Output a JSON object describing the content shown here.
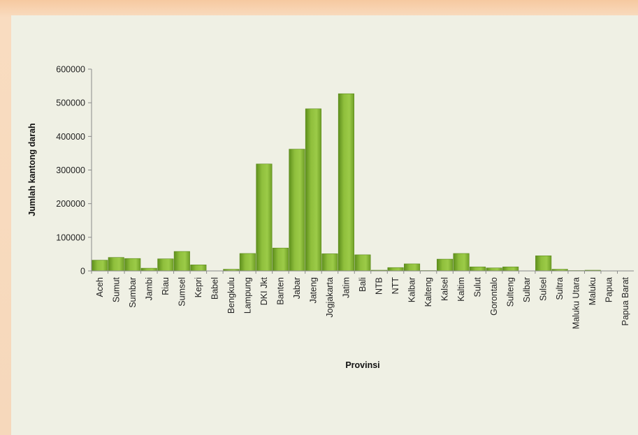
{
  "chart_data": {
    "type": "bar",
    "title": "",
    "xlabel": "Provinsi",
    "ylabel": "Jumlah kantong darah",
    "ylim": [
      0,
      600000
    ],
    "yticks": [
      0,
      100000,
      200000,
      300000,
      400000,
      500000,
      600000
    ],
    "ytick_labels": [
      "0",
      "100000",
      "200000",
      "300000",
      "400000",
      "500000",
      "600000"
    ],
    "grid": false,
    "legend": "none",
    "bar_color": "#7aaa2e",
    "categories": [
      "Aceh",
      "Sumut",
      "Sumbar",
      "Jambi",
      "Riau",
      "Sumsel",
      "Kepri",
      "Babel",
      "Bengkulu",
      "Lampung",
      "DKI Jkt",
      "Banten",
      "Jabar",
      "Jateng",
      "Jogjakarta",
      "Jatim",
      "Bali",
      "NTB",
      "NTT",
      "Kalbar",
      "Kalteng",
      "Kalsel",
      "Kaltim",
      "Sulut",
      "Gorontalo",
      "Sulteng",
      "Sulbar",
      "Sulsel",
      "Sultra",
      "Maluku Utara",
      "Maluku",
      "Papua",
      "Papua Barat"
    ],
    "values": [
      32000,
      40000,
      37000,
      8000,
      36000,
      58000,
      18000,
      0,
      5000,
      52000,
      318000,
      68000,
      362000,
      482000,
      51000,
      527000,
      48000,
      2000,
      10000,
      21000,
      1000,
      35000,
      52000,
      12000,
      9000,
      12000,
      0,
      45000,
      5000,
      1000,
      2000,
      0,
      0
    ]
  }
}
